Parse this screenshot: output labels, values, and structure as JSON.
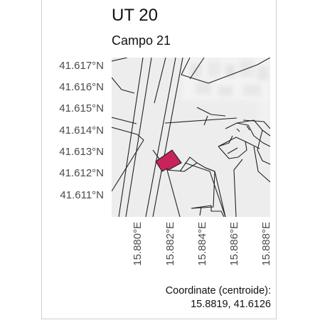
{
  "title": "UT 20",
  "subtitle": "Campo 21",
  "map": {
    "y_ticks": [
      "41.617°N",
      "41.616°N",
      "41.615°N",
      "41.614°N",
      "41.613°N",
      "41.612°N",
      "41.611°N"
    ],
    "x_ticks": [
      "15.880°E",
      "15.882°E",
      "15.884°E",
      "15.886°E",
      "15.888°E"
    ],
    "highlight_color": "#c8245a",
    "parcel_fill": "#ededed",
    "parcel_stroke": "#222222"
  },
  "caption": {
    "line1": "Coordinate (centroide):",
    "line2": "15.8819, 41.6126"
  }
}
